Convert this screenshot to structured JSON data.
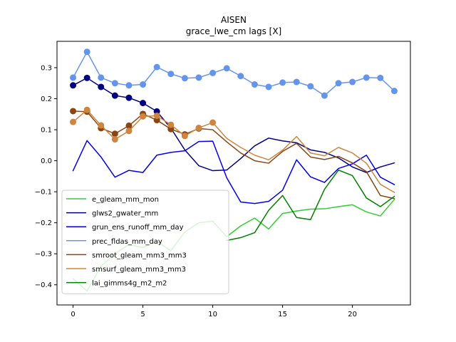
{
  "chart_data": {
    "type": "line",
    "title": "AISEN",
    "subtitle": "grace_lwe_cm lags [X]",
    "xlabel": "",
    "ylabel": "",
    "xlim": [
      -1.15,
      24.15
    ],
    "ylim": [
      -0.465,
      0.385
    ],
    "xticks": [
      0,
      5,
      10,
      15,
      20
    ],
    "yticks": [
      -0.4,
      -0.3,
      -0.2,
      -0.1,
      0.0,
      0.1,
      0.2,
      0.3
    ],
    "ytick_labels": [
      "−0.4",
      "−0.3",
      "−0.2",
      "−0.1",
      "0.0",
      "0.1",
      "0.2",
      "0.3"
    ],
    "grid": false,
    "legend_position": "lower-left",
    "x": [
      0,
      1,
      2,
      3,
      4,
      5,
      6,
      7,
      8,
      9,
      10,
      11,
      12,
      13,
      14,
      15,
      16,
      17,
      18,
      19,
      20,
      21,
      22,
      23
    ],
    "series": [
      {
        "name": "e_gleam_mm_mon",
        "color": "#32cd32",
        "markers": false,
        "values": [
          -0.38,
          -0.42,
          -0.34,
          -0.3,
          -0.27,
          -0.28,
          -0.26,
          -0.29,
          -0.23,
          -0.2,
          -0.195,
          -0.245,
          -0.21,
          -0.185,
          -0.22,
          -0.17,
          -0.162,
          -0.156,
          -0.155,
          -0.148,
          -0.142,
          -0.165,
          -0.178,
          -0.125
        ]
      },
      {
        "name": "glws2_gwater_mm",
        "color": "#000080",
        "markers": true,
        "marker_indices": [
          0,
          1,
          2,
          3,
          4,
          5,
          6
        ],
        "values": [
          0.243,
          0.267,
          0.238,
          0.21,
          0.203,
          0.186,
          0.159,
          0.105,
          0.035,
          -0.016,
          -0.032,
          -0.03,
          0.007,
          0.048,
          0.073,
          0.064,
          0.058,
          0.035,
          0.027,
          0.009,
          -0.02,
          -0.038,
          -0.02,
          -0.007
        ]
      },
      {
        "name": "grun_ens_runoff_mm_day",
        "color": "#0000ee",
        "markers": false,
        "values": [
          -0.032,
          0.065,
          0.012,
          -0.053,
          -0.031,
          -0.038,
          0.018,
          0.027,
          0.032,
          0.062,
          0.063,
          -0.055,
          -0.133,
          -0.138,
          -0.131,
          -0.095,
          0.003,
          -0.052,
          -0.07,
          -0.025,
          -0.01,
          0.018,
          -0.053,
          -0.077
        ]
      },
      {
        "name": "prec_fldas_mm_day",
        "color": "#6495ed",
        "markers": true,
        "marker_indices": [
          0,
          1,
          2,
          3,
          4,
          5,
          6,
          7,
          8,
          9,
          10,
          11,
          12,
          13,
          14,
          15,
          16,
          17,
          18,
          19,
          20,
          21,
          22,
          23
        ],
        "values": [
          0.268,
          0.351,
          0.268,
          0.25,
          0.243,
          0.246,
          0.302,
          0.28,
          0.266,
          0.268,
          0.283,
          0.298,
          0.273,
          0.246,
          0.238,
          0.252,
          0.254,
          0.24,
          0.21,
          0.25,
          0.254,
          0.268,
          0.267,
          0.225
        ]
      },
      {
        "name": "smroot_gleam_mm3_mm3",
        "color": "#8b4513",
        "markers": true,
        "marker_indices": [
          0,
          1,
          2,
          3,
          4,
          5,
          6,
          7,
          8,
          9
        ],
        "values": [
          0.16,
          0.158,
          0.105,
          0.087,
          0.113,
          0.151,
          0.131,
          0.102,
          0.085,
          0.104,
          0.1,
          0.061,
          0.025,
          0.0,
          -0.008,
          0.03,
          0.056,
          0.012,
          0.004,
          0.014,
          -0.007,
          -0.035,
          -0.112,
          -0.122
        ]
      },
      {
        "name": "smsurf_gleam_mm3_mm3",
        "color": "#cd853f",
        "markers": true,
        "marker_indices": [
          0,
          1,
          2,
          3,
          4,
          5,
          6,
          7,
          8,
          9,
          10
        ],
        "values": [
          0.125,
          0.164,
          0.114,
          0.069,
          0.096,
          0.143,
          0.145,
          0.116,
          0.08,
          0.106,
          0.123,
          0.072,
          0.043,
          0.018,
          0.003,
          0.034,
          0.078,
          0.025,
          0.016,
          0.043,
          0.025,
          -0.008,
          -0.076,
          -0.102
        ]
      },
      {
        "name": "lai_gimms4g_m2_m2",
        "color": "#008000",
        "markers": false,
        "values": [
          null,
          null,
          null,
          null,
          null,
          null,
          null,
          null,
          null,
          null,
          null,
          -0.257,
          -0.248,
          -0.232,
          -0.16,
          -0.112,
          -0.183,
          -0.19,
          -0.092,
          -0.03,
          -0.048,
          -0.12,
          -0.148,
          -0.115
        ]
      }
    ]
  }
}
